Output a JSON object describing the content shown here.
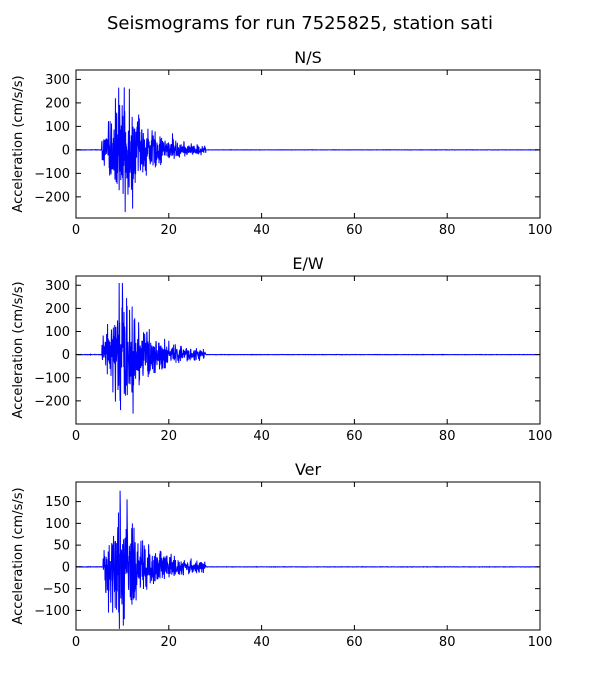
{
  "figure": {
    "suptitle": "Seismograms for run 7525825, station sati"
  },
  "chart_data": [
    {
      "type": "line",
      "title": "N/S",
      "xlabel": "",
      "ylabel": "Acceleration (cm/s/s)",
      "xlim": [
        0,
        100
      ],
      "ylim": [
        -290,
        340
      ],
      "xticks": [
        0,
        20,
        40,
        60,
        80,
        100
      ],
      "yticks": [
        -200,
        -100,
        0,
        100,
        200,
        300
      ],
      "grid": false,
      "line_color": "#0000ff",
      "waveform": {
        "onset": 5.5,
        "peak_time": 10.5,
        "end": 28,
        "peak_amplitude": 270,
        "peaks": [
          [
            9.2,
            265
          ],
          [
            10.6,
            -265
          ],
          [
            11.5,
            260
          ],
          [
            12.2,
            -250
          ],
          [
            8.5,
            220
          ],
          [
            13.5,
            150
          ],
          [
            15.5,
            90
          ],
          [
            20.8,
            70
          ]
        ]
      }
    },
    {
      "type": "line",
      "title": "E/W",
      "xlabel": "",
      "ylabel": "Acceleration (cm/s/s)",
      "xlim": [
        0,
        100
      ],
      "ylim": [
        -300,
        340
      ],
      "xticks": [
        0,
        20,
        40,
        60,
        80,
        100
      ],
      "yticks": [
        -200,
        -100,
        0,
        100,
        200,
        300
      ],
      "grid": false,
      "line_color": "#0000ff",
      "waveform": {
        "onset": 5.5,
        "peak_time": 10.0,
        "end": 28,
        "peak_amplitude": 310,
        "peaks": [
          [
            9.3,
            310
          ],
          [
            10.0,
            310
          ],
          [
            12.3,
            -255
          ],
          [
            9.6,
            -240
          ],
          [
            11.0,
            210
          ],
          [
            13.5,
            140
          ],
          [
            15.8,
            110
          ],
          [
            20.0,
            60
          ]
        ]
      }
    },
    {
      "type": "line",
      "title": "Ver",
      "xlabel": "",
      "ylabel": "Acceleration (cm/s/s)",
      "xlim": [
        0,
        100
      ],
      "ylim": [
        -145,
        195
      ],
      "xticks": [
        0,
        20,
        40,
        60,
        80,
        100
      ],
      "yticks": [
        -100,
        -50,
        0,
        50,
        100,
        150
      ],
      "grid": false,
      "line_color": "#0000ff",
      "waveform": {
        "onset": 5.8,
        "peak_time": 9.5,
        "end": 28,
        "peak_amplitude": 175,
        "peaks": [
          [
            9.5,
            175
          ],
          [
            11.0,
            155
          ],
          [
            10.2,
            -135
          ],
          [
            7.0,
            -105
          ],
          [
            12.5,
            90
          ],
          [
            14.0,
            60
          ],
          [
            20.5,
            30
          ]
        ]
      }
    }
  ]
}
